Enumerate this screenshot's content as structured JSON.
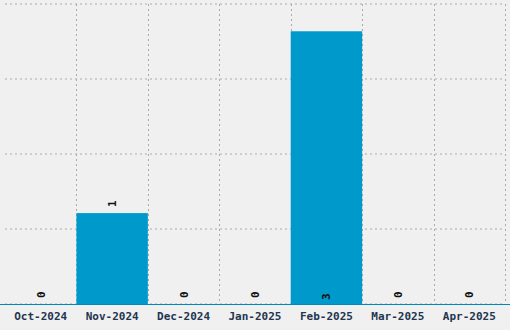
{
  "chart_data": {
    "type": "bar",
    "categories": [
      "Oct-2024",
      "Nov-2024",
      "Dec-2024",
      "Jan-2025",
      "Feb-2025",
      "Mar-2025",
      "Apr-2025"
    ],
    "values": [
      0,
      1,
      0,
      0,
      3,
      0,
      0
    ],
    "color": "#0099cc",
    "ylim": [
      0,
      3.3
    ],
    "yticks": [
      0,
      0.825,
      1.65,
      2.475,
      3.3
    ],
    "grid": true,
    "data_labels": true,
    "tick_labels": "x"
  }
}
